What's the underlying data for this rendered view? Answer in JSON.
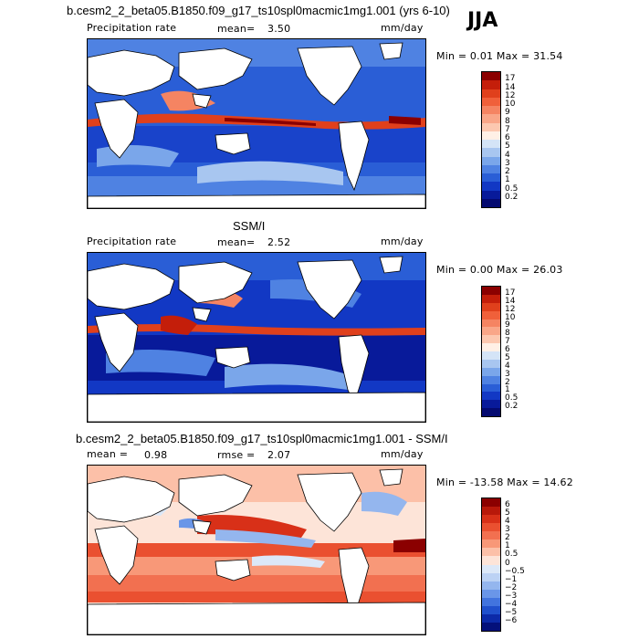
{
  "header": {
    "run_title": "b.cesm2_2_beta05.B1850.f09_g17_ts10spl0macmic1mg1.001 (yrs 6-10)",
    "season": "JJA"
  },
  "panels": [
    {
      "label": "Precipitation rate",
      "stat1_label": "mean=",
      "stat1_value": "3.50",
      "units": "mm/day",
      "range": "Min =   0.01 Max =   31.54",
      "levels": [
        "17",
        "14",
        "12",
        "10",
        "9",
        "8",
        "7",
        "6",
        "5",
        "4",
        "3",
        "2",
        "1",
        "0.5",
        "0.2"
      ],
      "colors": [
        "#8b0000",
        "#c41e0a",
        "#e0401c",
        "#f0603a",
        "#f58462",
        "#f9a688",
        "#fcc8b0",
        "#fff0e6",
        "#d4e4f7",
        "#a8c6f0",
        "#7aa6ea",
        "#4f82e2",
        "#2a5ed6",
        "#1238c4",
        "#081a9a",
        "#040a70"
      ]
    },
    {
      "subtitle": "SSM/I",
      "label": "Precipitation rate",
      "stat1_label": "mean=",
      "stat1_value": "2.52",
      "units": "mm/day",
      "range": "Min =   0.00 Max =   26.03",
      "levels": [
        "17",
        "14",
        "12",
        "10",
        "9",
        "8",
        "7",
        "6",
        "5",
        "4",
        "3",
        "2",
        "1",
        "0.5",
        "0.2"
      ],
      "colors": [
        "#8b0000",
        "#c41e0a",
        "#e0401c",
        "#f0603a",
        "#f58462",
        "#f9a688",
        "#fcc8b0",
        "#fff0e6",
        "#d4e4f7",
        "#a8c6f0",
        "#7aa6ea",
        "#4f82e2",
        "#2a5ed6",
        "#1238c4",
        "#081a9a",
        "#040a70"
      ]
    },
    {
      "subtitle": "b.cesm2_2_beta05.B1850.f09_g17_ts10spl0macmic1mg1.001 - SSM/I",
      "stat1_label": "mean =",
      "stat1_value": "0.98",
      "stat2_label": "rmse =",
      "stat2_value": "2.07",
      "units": "mm/day",
      "range": "Min = -13.58 Max =   14.62",
      "levels": [
        "6",
        "5",
        "4",
        "3",
        "2",
        "1",
        "0.5",
        "0",
        "−0.5",
        "−1",
        "−2",
        "−3",
        "−4",
        "−5",
        "−6"
      ],
      "colors": [
        "#8b0000",
        "#b8180a",
        "#d83018",
        "#ea5030",
        "#f27050",
        "#f89878",
        "#fcc0a8",
        "#fde4d8",
        "#dce8f8",
        "#bcd2f4",
        "#94b6ee",
        "#6a96e8",
        "#4274de",
        "#2050cc",
        "#0c2aa8",
        "#04107a"
      ]
    }
  ]
}
